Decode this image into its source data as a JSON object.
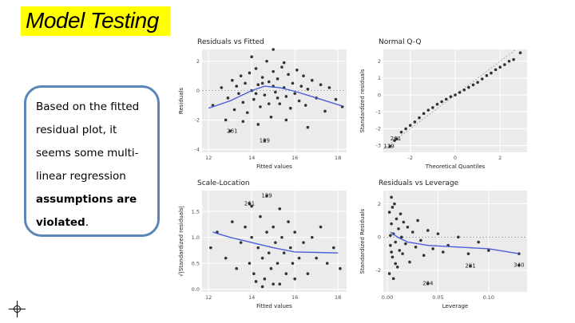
{
  "slide_title": "Model Testing",
  "callout": {
    "line1": "Based on the fitted",
    "line2": "residual plot, it",
    "line3": "seems some multi-",
    "line4": "linear regression",
    "bold1": "assumptions are",
    "bold2": "violated",
    "end": "."
  },
  "colors": {
    "title_highlight": "#ffff00",
    "callout_border": "#5b87b8",
    "panel_bg": "#ebebeb",
    "point": "#333333",
    "smooth": "#4a5fd9"
  },
  "icons": {
    "cursor": "crosshair-icon"
  },
  "chart_data": [
    {
      "type": "scatter",
      "title": "Residuals vs Fitted",
      "xlabel": "Fitted values",
      "ylabel": "Residuals",
      "xticks": [
        "12",
        "14",
        "16",
        "18"
      ],
      "yticks": [
        "-4",
        "-2",
        "0",
        "2"
      ],
      "xlim": [
        11.7,
        18.4
      ],
      "ylim": [
        -4.2,
        2.8
      ],
      "grid": true,
      "reference_line": 0,
      "smooth": [
        [
          12.0,
          -1.2
        ],
        [
          13.0,
          -0.7
        ],
        [
          14.0,
          0.0
        ],
        [
          14.6,
          0.3
        ],
        [
          15.3,
          0.2
        ],
        [
          16.0,
          -0.05
        ],
        [
          17.0,
          -0.5
        ],
        [
          18.2,
          -1.05
        ]
      ],
      "annotations": [
        {
          "text": "261",
          "x": 13.1,
          "y": -2.75
        },
        {
          "text": "129",
          "x": 14.6,
          "y": -3.4
        }
      ],
      "points": [
        [
          12.2,
          -1.0
        ],
        [
          12.6,
          0.2
        ],
        [
          12.9,
          -0.5
        ],
        [
          13.1,
          0.7
        ],
        [
          13.2,
          -1.3
        ],
        [
          13.3,
          0.3
        ],
        [
          13.4,
          -0.2
        ],
        [
          13.5,
          1.0
        ],
        [
          13.6,
          -0.8
        ],
        [
          13.7,
          0.5
        ],
        [
          13.8,
          -1.5
        ],
        [
          13.9,
          1.2
        ],
        [
          14.0,
          0.0
        ],
        [
          14.1,
          -0.6
        ],
        [
          14.2,
          1.5
        ],
        [
          14.3,
          0.4
        ],
        [
          14.4,
          -1.1
        ],
        [
          14.5,
          0.9
        ],
        [
          14.6,
          -0.3
        ],
        [
          14.7,
          2.0
        ],
        [
          14.8,
          0.6
        ],
        [
          14.9,
          -1.8
        ],
        [
          15.0,
          1.3
        ],
        [
          15.1,
          -0.1
        ],
        [
          15.2,
          0.8
        ],
        [
          15.3,
          -0.9
        ],
        [
          15.4,
          1.6
        ],
        [
          15.5,
          0.2
        ],
        [
          15.6,
          -0.4
        ],
        [
          15.7,
          1.1
        ],
        [
          15.8,
          -1.2
        ],
        [
          15.9,
          0.5
        ],
        [
          16.0,
          -0.2
        ],
        [
          16.1,
          1.4
        ],
        [
          16.2,
          -0.7
        ],
        [
          16.3,
          0.3
        ],
        [
          16.4,
          1.0
        ],
        [
          16.5,
          -1.0
        ],
        [
          16.6,
          0.1
        ],
        [
          16.8,
          0.7
        ],
        [
          17.0,
          -0.5
        ],
        [
          17.2,
          0.4
        ],
        [
          17.4,
          -1.4
        ],
        [
          17.6,
          0.2
        ],
        [
          17.9,
          -0.6
        ],
        [
          18.2,
          -1.1
        ],
        [
          14.2,
          -0.2
        ],
        [
          14.5,
          0.5
        ],
        [
          14.8,
          -0.9
        ],
        [
          15.0,
          0.3
        ],
        [
          15.2,
          -0.5
        ],
        [
          15.5,
          1.9
        ],
        [
          14.0,
          2.3
        ],
        [
          15.0,
          2.8
        ],
        [
          13.0,
          -2.75
        ],
        [
          14.6,
          -3.4
        ],
        [
          13.6,
          -2.1
        ],
        [
          14.3,
          -2.3
        ],
        [
          15.6,
          -2.0
        ],
        [
          16.6,
          -2.5
        ],
        [
          12.8,
          -2.0
        ]
      ]
    },
    {
      "type": "scatter",
      "title": "Normal Q-Q",
      "xlabel": "Theoretical Quantiles",
      "ylabel": "Standardized residuals",
      "xticks": [
        "-2",
        "0",
        "2"
      ],
      "yticks": [
        "-3",
        "-2",
        "-1",
        "0",
        "1",
        "2"
      ],
      "xlim": [
        -3.2,
        3.2
      ],
      "ylim": [
        -3.4,
        2.7
      ],
      "grid": true,
      "reference_line": "y=x",
      "annotations": [
        {
          "text": "261",
          "x": -2.65,
          "y": -2.6
        },
        {
          "text": "129",
          "x": -2.95,
          "y": -3.05
        }
      ],
      "points": [
        [
          -2.9,
          -3.05
        ],
        [
          -2.7,
          -2.7
        ],
        [
          -2.6,
          -2.6
        ],
        [
          -2.4,
          -2.2
        ],
        [
          -2.2,
          -2.0
        ],
        [
          -2.0,
          -1.8
        ],
        [
          -1.8,
          -1.6
        ],
        [
          -1.6,
          -1.35
        ],
        [
          -1.4,
          -1.1
        ],
        [
          -1.2,
          -0.9
        ],
        [
          -1.0,
          -0.75
        ],
        [
          -0.8,
          -0.55
        ],
        [
          -0.6,
          -0.4
        ],
        [
          -0.4,
          -0.25
        ],
        [
          -0.2,
          -0.1
        ],
        [
          0.0,
          0.0
        ],
        [
          0.2,
          0.15
        ],
        [
          0.4,
          0.3
        ],
        [
          0.6,
          0.45
        ],
        [
          0.8,
          0.6
        ],
        [
          1.0,
          0.75
        ],
        [
          1.2,
          0.95
        ],
        [
          1.4,
          1.15
        ],
        [
          1.6,
          1.3
        ],
        [
          1.8,
          1.5
        ],
        [
          2.0,
          1.65
        ],
        [
          2.2,
          1.8
        ],
        [
          2.4,
          2.0
        ],
        [
          2.6,
          2.1
        ],
        [
          2.9,
          2.5
        ]
      ]
    },
    {
      "type": "scatter",
      "title": "Scale-Location",
      "xlabel": "Fitted values",
      "ylabel": "√|Standardized residuals|",
      "xticks": [
        "12",
        "14",
        "16",
        "18"
      ],
      "yticks": [
        "0.0",
        "0.5",
        "1.0",
        "1.5"
      ],
      "xlim": [
        11.7,
        18.4
      ],
      "ylim": [
        -0.05,
        1.9
      ],
      "grid": true,
      "smooth": [
        [
          12.2,
          1.1
        ],
        [
          13.0,
          1.0
        ],
        [
          14.0,
          0.9
        ],
        [
          15.0,
          0.8
        ],
        [
          16.0,
          0.72
        ],
        [
          17.0,
          0.71
        ],
        [
          18.0,
          0.7
        ]
      ],
      "annotations": [
        {
          "text": "129",
          "x": 14.7,
          "y": 1.8
        },
        {
          "text": "261",
          "x": 13.9,
          "y": 1.65
        }
      ],
      "points": [
        [
          12.1,
          0.8
        ],
        [
          12.4,
          1.1
        ],
        [
          12.8,
          0.6
        ],
        [
          13.1,
          1.3
        ],
        [
          13.3,
          0.4
        ],
        [
          13.5,
          0.9
        ],
        [
          13.7,
          1.2
        ],
        [
          13.9,
          0.5
        ],
        [
          14.0,
          1.0
        ],
        [
          14.1,
          0.3
        ],
        [
          14.3,
          0.8
        ],
        [
          14.4,
          1.4
        ],
        [
          14.5,
          0.6
        ],
        [
          14.6,
          0.2
        ],
        [
          14.7,
          1.1
        ],
        [
          14.8,
          0.7
        ],
        [
          14.9,
          0.4
        ],
        [
          15.0,
          1.2
        ],
        [
          15.1,
          0.9
        ],
        [
          15.2,
          0.5
        ],
        [
          15.3,
          0.1
        ],
        [
          15.4,
          1.0
        ],
        [
          15.5,
          0.7
        ],
        [
          15.6,
          0.3
        ],
        [
          15.7,
          1.3
        ],
        [
          15.8,
          0.8
        ],
        [
          15.9,
          0.5
        ],
        [
          16.0,
          1.1
        ],
        [
          16.2,
          0.6
        ],
        [
          16.4,
          0.9
        ],
        [
          16.6,
          0.3
        ],
        [
          16.8,
          1.0
        ],
        [
          17.0,
          0.6
        ],
        [
          17.2,
          1.2
        ],
        [
          17.5,
          0.5
        ],
        [
          17.8,
          0.8
        ],
        [
          18.1,
          0.4
        ],
        [
          14.2,
          0.15
        ],
        [
          14.5,
          0.05
        ],
        [
          15.0,
          0.1
        ],
        [
          16.0,
          0.2
        ],
        [
          14.0,
          1.6
        ],
        [
          13.9,
          1.65
        ],
        [
          14.7,
          1.8
        ],
        [
          15.3,
          1.55
        ]
      ]
    },
    {
      "type": "scatter",
      "title": "Residuals vs Leverage",
      "xlabel": "Leverage",
      "ylabel": "Standardized Residuals",
      "xticks": [
        "0.00",
        "0.05",
        "0.10"
      ],
      "yticks": [
        "-2",
        "0",
        "2"
      ],
      "xlim": [
        -0.004,
        0.138
      ],
      "ylim": [
        -3.3,
        2.8
      ],
      "grid": true,
      "reference_line": 0,
      "smooth": [
        [
          0.003,
          0.3
        ],
        [
          0.01,
          0.0
        ],
        [
          0.02,
          -0.3
        ],
        [
          0.04,
          -0.5
        ],
        [
          0.07,
          -0.6
        ],
        [
          0.1,
          -0.7
        ],
        [
          0.13,
          -1.0
        ]
      ],
      "annotations": [
        {
          "text": "340",
          "x": 0.13,
          "y": -1.7
        },
        {
          "text": "281",
          "x": 0.082,
          "y": -1.75
        },
        {
          "text": "284",
          "x": 0.04,
          "y": -2.8
        }
      ],
      "points": [
        [
          0.002,
          1.5
        ],
        [
          0.003,
          -0.5
        ],
        [
          0.004,
          0.8
        ],
        [
          0.005,
          -1.2
        ],
        [
          0.006,
          0.2
        ],
        [
          0.007,
          2.0
        ],
        [
          0.008,
          -0.3
        ],
        [
          0.009,
          1.1
        ],
        [
          0.01,
          -1.8
        ],
        [
          0.011,
          0.5
        ],
        [
          0.012,
          -0.8
        ],
        [
          0.013,
          1.4
        ],
        [
          0.014,
          0.0
        ],
        [
          0.015,
          -1.0
        ],
        [
          0.016,
          0.9
        ],
        [
          0.018,
          -0.4
        ],
        [
          0.02,
          0.6
        ],
        [
          0.022,
          -1.5
        ],
        [
          0.025,
          0.3
        ],
        [
          0.028,
          -0.6
        ],
        [
          0.03,
          1.0
        ],
        [
          0.033,
          -0.2
        ],
        [
          0.036,
          -1.1
        ],
        [
          0.04,
          0.4
        ],
        [
          0.045,
          -0.7
        ],
        [
          0.05,
          0.2
        ],
        [
          0.055,
          -0.9
        ],
        [
          0.06,
          -0.5
        ],
        [
          0.07,
          0.0
        ],
        [
          0.08,
          -1.0
        ],
        [
          0.09,
          -0.3
        ],
        [
          0.1,
          -0.8
        ],
        [
          0.13,
          -1.0
        ],
        [
          0.002,
          -2.2
        ],
        [
          0.004,
          2.4
        ],
        [
          0.006,
          -2.5
        ],
        [
          0.005,
          1.8
        ],
        [
          0.008,
          -1.6
        ],
        [
          0.003,
          0.1
        ],
        [
          0.004,
          -0.9
        ],
        [
          0.082,
          -1.75
        ],
        [
          0.04,
          -2.8
        ],
        [
          0.13,
          -1.7
        ]
      ]
    }
  ]
}
